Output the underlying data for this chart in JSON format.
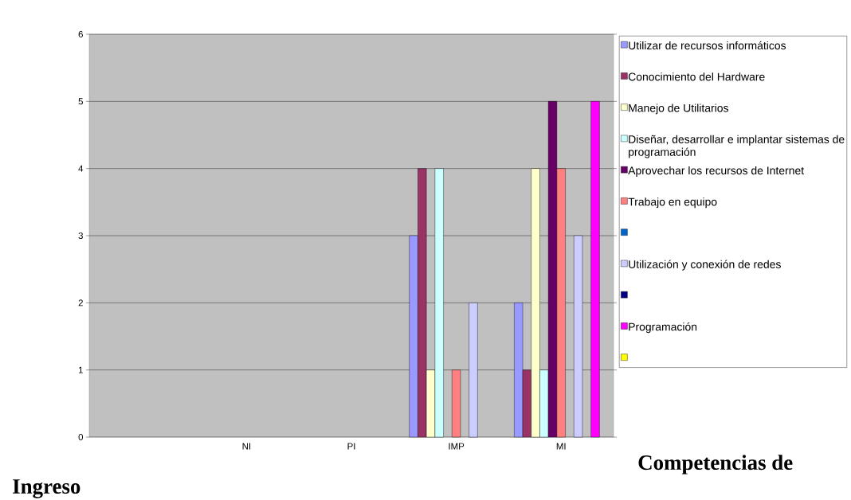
{
  "chart_data": {
    "type": "bar",
    "xlabel": "Competencias de Ingreso",
    "categories": [
      null,
      "NI",
      "PI",
      "IMP",
      "MI"
    ],
    "series": [
      {
        "name": "Utilizar de recursos informáticos",
        "color": "#9999ff",
        "values": [
          null,
          null,
          null,
          3,
          2
        ]
      },
      {
        "name": "Conocimiento del Hardware",
        "color": "#993366",
        "values": [
          null,
          null,
          null,
          4,
          1
        ]
      },
      {
        "name": "Manejo de Utilitarios",
        "color": "#ffffcc",
        "values": [
          null,
          null,
          null,
          1,
          4
        ]
      },
      {
        "name": "Diseñar, desarrollar e implantar sistemas de programación",
        "color": "#ccffff",
        "values": [
          null,
          null,
          null,
          4,
          1
        ]
      },
      {
        "name": "Aprovechar los recursos de Internet",
        "color": "#660066",
        "values": [
          null,
          null,
          null,
          null,
          5
        ]
      },
      {
        "name": "Trabajo en equipo",
        "color": "#ff8080",
        "values": [
          null,
          null,
          null,
          1,
          4
        ]
      },
      {
        "color": "#0066cc",
        "values": [
          null,
          null,
          null,
          null,
          null
        ]
      },
      {
        "name": "Utilización y conexión de redes",
        "color": "#ccccff",
        "values": [
          null,
          null,
          null,
          2,
          3
        ]
      },
      {
        "color": "#000080",
        "values": [
          null,
          null,
          null,
          null,
          null
        ]
      },
      {
        "name": "Programación",
        "color": "#ff00ff",
        "values": [
          null,
          null,
          null,
          null,
          5
        ]
      },
      {
        "color": "#ffff00",
        "values": [
          null,
          null,
          null,
          null,
          null
        ]
      }
    ],
    "ylim": [
      0,
      6
    ],
    "yticks": [
      0,
      1,
      2,
      3,
      4,
      5,
      6
    ],
    "grid": "y",
    "legend": "right"
  }
}
